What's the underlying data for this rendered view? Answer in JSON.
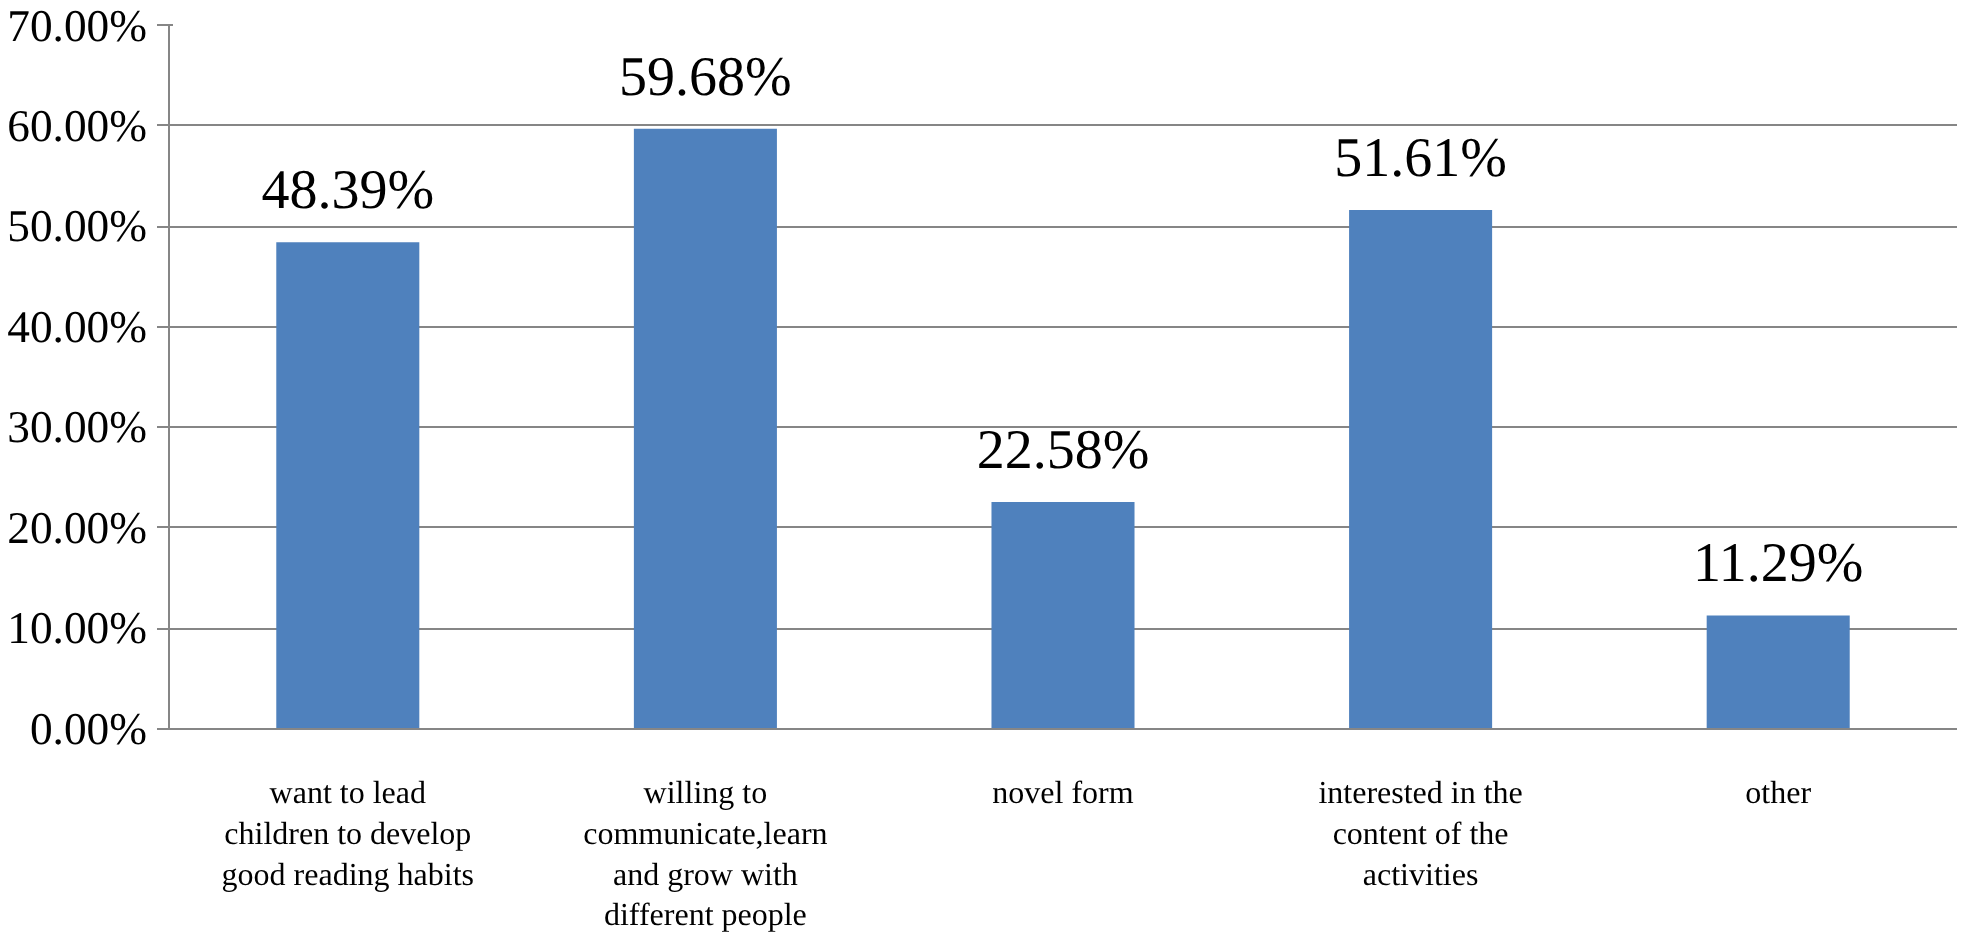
{
  "chart_data": {
    "type": "bar",
    "categories": [
      "want to lead children to develop good reading habits",
      "willing to communicate,learn and grow with different people",
      "novel form",
      "interested in the content of the activities",
      "other"
    ],
    "values": [
      48.39,
      59.68,
      22.58,
      51.61,
      11.29
    ],
    "color": "#4f81bd",
    "value_labels": [
      "48.39%",
      "59.68%",
      "22.58%",
      "51.61%",
      "11.29%"
    ],
    "ylim": [
      0,
      70
    ],
    "yticks": [
      {
        "value": 0,
        "label": "0.00%"
      },
      {
        "value": 10,
        "label": "10.00%"
      },
      {
        "value": 20,
        "label": "20.00%"
      },
      {
        "value": 30,
        "label": "30.00%"
      },
      {
        "value": 40,
        "label": "40.00%"
      },
      {
        "value": 50,
        "label": "50.00%"
      },
      {
        "value": 60,
        "label": "60.00%"
      },
      {
        "value": 70,
        "label": "70.00%"
      }
    ],
    "grid": "y"
  }
}
